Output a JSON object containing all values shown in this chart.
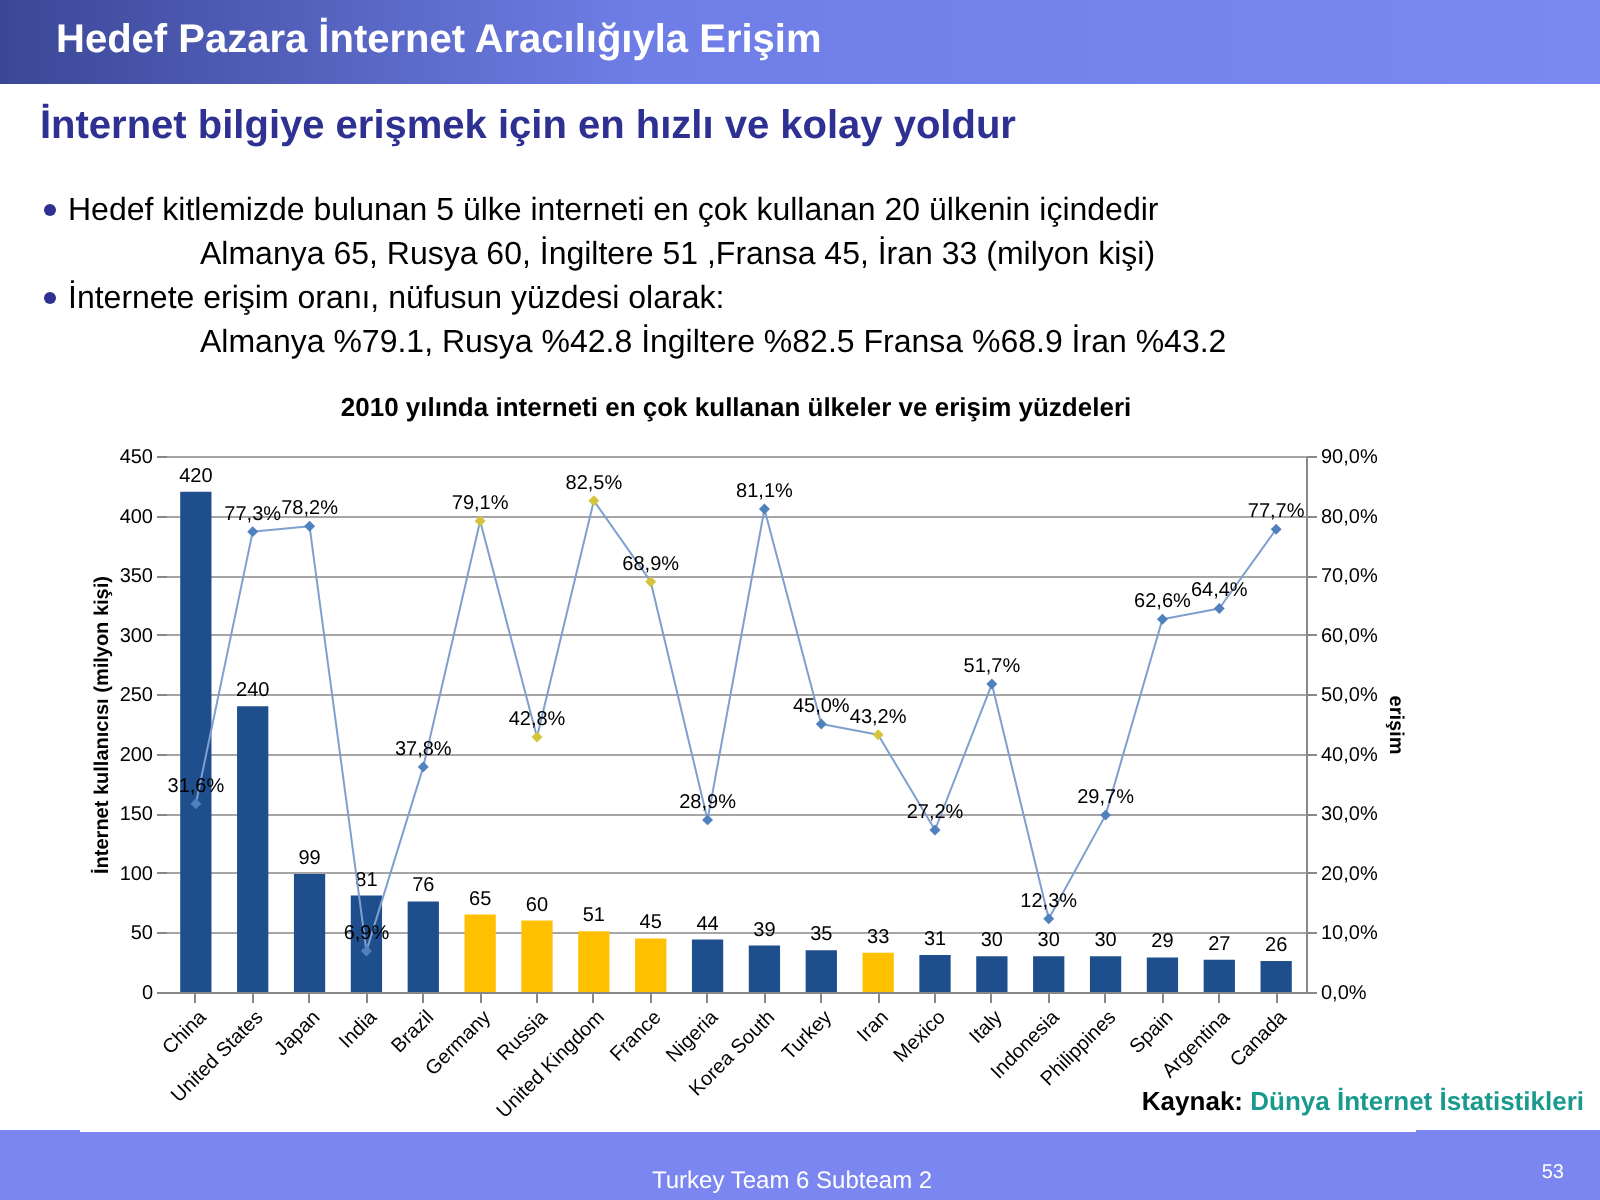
{
  "chart_data": {
    "type": "bar",
    "title": "2010 yılında interneti en çok kullanan ülkeler ve erişim yüzdeleri",
    "ylabel": "İnternet kullanıcısı (milyon kişi)",
    "y2label": "erişim",
    "categories": [
      "China",
      "United States",
      "Japan",
      "India",
      "Brazil",
      "Germany",
      "Russia",
      "United Kingdom",
      "France",
      "Nigeria",
      "Korea South",
      "Turkey",
      "Iran",
      "Mexico",
      "Italy",
      "Indonesia",
      "Philippines",
      "Spain",
      "Argentina",
      "Canada"
    ],
    "series": [
      {
        "values": [
          420,
          240,
          99,
          81,
          76,
          65,
          60,
          51,
          45,
          44,
          39,
          35,
          33,
          31,
          30,
          30,
          30,
          29,
          27,
          26
        ],
        "colors": [
          "#1f4e8c",
          "#1f4e8c",
          "#1f4e8c",
          "#1f4e8c",
          "#1f4e8c",
          "#ffc000",
          "#ffc000",
          "#ffc000",
          "#ffc000",
          "#1f4e8c",
          "#1f4e8c",
          "#1f4e8c",
          "#ffc000",
          "#1f4e8c",
          "#1f4e8c",
          "#1f4e8c",
          "#1f4e8c",
          "#1f4e8c",
          "#1f4e8c",
          "#1f4e8c"
        ],
        "value_labels": [
          "420",
          "240",
          "99",
          "81",
          "76",
          "65",
          "60",
          "51",
          "45",
          "44",
          "39",
          "35",
          "33",
          "31",
          "30",
          "30",
          "30",
          "29",
          "27",
          "26"
        ]
      },
      {
        "type": "line",
        "axis": "y2",
        "color": "#7f9fcf",
        "values": [
          31.6,
          77.3,
          78.2,
          6.9,
          37.8,
          79.1,
          42.8,
          82.5,
          68.9,
          28.9,
          81.1,
          45.0,
          43.2,
          27.2,
          51.7,
          12.3,
          29.7,
          62.6,
          64.4,
          77.7
        ],
        "colors": [
          "#4f81bd",
          "#4f81bd",
          "#4f81bd",
          "#4f81bd",
          "#4f81bd",
          "#d4c43c",
          "#d4c43c",
          "#d4c43c",
          "#d4c43c",
          "#4f81bd",
          "#4f81bd",
          "#4f81bd",
          "#d4c43c",
          "#4f81bd",
          "#4f81bd",
          "#4f81bd",
          "#4f81bd",
          "#4f81bd",
          "#4f81bd",
          "#4f81bd"
        ],
        "value_labels": [
          "31,6%",
          "77,3%",
          "78,2%",
          "6,9%",
          "37,8%",
          "79,1%",
          "42,8%",
          "82,5%",
          "68,9%",
          "28,9%",
          "81,1%",
          "45,0%",
          "43,2%",
          "27,2%",
          "51,7%",
          "12,3%",
          "29,7%",
          "62,6%",
          "64,4%",
          "77,7%"
        ]
      }
    ],
    "ylim": [
      0,
      450
    ],
    "yticks": [
      0,
      50,
      100,
      150,
      200,
      250,
      300,
      350,
      400,
      450
    ],
    "y2lim": [
      0,
      90
    ],
    "y2ticks": [
      {
        "value": 0,
        "label": "0,0%"
      },
      {
        "value": 10,
        "label": "10,0%"
      },
      {
        "value": 20,
        "label": "20,0%"
      },
      {
        "value": 30,
        "label": "30,0%"
      },
      {
        "value": 40,
        "label": "40,0%"
      },
      {
        "value": 50,
        "label": "50,0%"
      },
      {
        "value": 60,
        "label": "60,0%"
      },
      {
        "value": 70,
        "label": "70,0%"
      },
      {
        "value": 80,
        "label": "80,0%"
      },
      {
        "value": 90,
        "label": "90,0%"
      }
    ],
    "grid": "y",
    "marker": "diamond",
    "line_style": "solid",
    "annotations": [
      "Hedef Pazara İnternet Aracılığıyla Erişim",
      "İnternet bilgiye erişmek için en hızlı ve kolay yoldur",
      "Hedef kitlemizde bulunan 5 ülke interneti en çok kullanan 20 ülkenin içindedir",
      "Almanya 65, Rusya 60, İngiltere 51 ,Fransa 45, İran 33 (milyon kişi)",
      "İnternete erişim oranı, nüfusun yüzdesi olarak:",
      "Almanya %79.1, Rusya %42.8 İngiltere %82.5 Fransa %68.9 İran %43.2",
      "Kaynak: Dünya İnternet İstatistikleri",
      "Turkey Team 6 Subteam 2",
      "53"
    ]
  }
}
